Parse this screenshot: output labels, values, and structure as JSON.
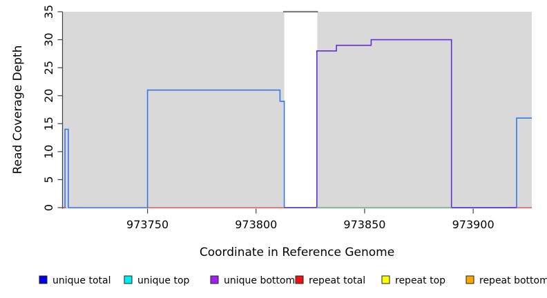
{
  "chart_data": {
    "type": "line",
    "subtype": "step-coverage",
    "title": "",
    "xlabel": "Coordinate in Reference Genome",
    "ylabel": "Read Coverage Depth",
    "xlim": [
      973711,
      973927
    ],
    "ylim": [
      0,
      35
    ],
    "x_ticks": [
      973750,
      973800,
      973850,
      973900
    ],
    "y_ticks": [
      0,
      5,
      10,
      15,
      20,
      25,
      30,
      35
    ],
    "grid": false,
    "background": {
      "plot_fill": "#d9d9d9",
      "page_fill": "#ffffff",
      "white_band_x": [
        973813,
        973828.2
      ]
    },
    "clipped_region_line": {
      "x": [
        973812.5,
        973828.5
      ],
      "y": 35,
      "color": "#7d7d7d",
      "note": "coverage clipped at top of white band"
    },
    "series": [
      {
        "name": "unique total",
        "color": "#3578e8",
        "width": 1.6,
        "points": [
          [
            973711,
            0
          ],
          [
            973712,
            0
          ],
          [
            973712,
            14
          ],
          [
            973713.5,
            14
          ],
          [
            973713.5,
            0
          ],
          [
            973750,
            0
          ],
          [
            973750,
            21
          ],
          [
            973811,
            21
          ],
          [
            973811,
            19
          ],
          [
            973813,
            19
          ],
          [
            973813,
            0
          ],
          [
            973920,
            0
          ],
          [
            973920,
            16
          ],
          [
            973927,
            16
          ]
        ]
      },
      {
        "name": "unique bottom",
        "color": "#5c2fd8",
        "width": 1.6,
        "points": [
          [
            973813,
            0
          ],
          [
            973828,
            0
          ],
          [
            973828,
            28
          ],
          [
            973837,
            28
          ],
          [
            973837,
            29
          ],
          [
            973853,
            29
          ],
          [
            973853,
            30
          ],
          [
            973890,
            30
          ],
          [
            973890,
            0
          ],
          [
            973920,
            0
          ]
        ]
      },
      {
        "name": "zero line green",
        "color": "#85c285",
        "width": 1.4,
        "points": [
          [
            973828,
            0
          ],
          [
            973890,
            0
          ]
        ]
      },
      {
        "name": "repeat total left corner",
        "color": "#e8484d",
        "width": 1.3,
        "points": [
          [
            973711,
            0
          ],
          [
            973712.5,
            0
          ]
        ]
      },
      {
        "name": "repeat total mid",
        "color": "#e8484d",
        "width": 1.3,
        "points": [
          [
            973750,
            0
          ],
          [
            973813,
            0
          ]
        ]
      },
      {
        "name": "repeat total right",
        "color": "#e8484d",
        "width": 1.3,
        "points": [
          [
            973920,
            0
          ],
          [
            973927,
            0
          ]
        ]
      }
    ],
    "legend": {
      "position": "bottom",
      "items": [
        {
          "label": "unique total",
          "color": "#0000e6"
        },
        {
          "label": "unique top",
          "color": "#00eeee"
        },
        {
          "label": "unique bottom",
          "color": "#a020f0"
        },
        {
          "label": "repeat total",
          "color": "#ee1111"
        },
        {
          "label": "repeat top",
          "color": "#ffff00"
        },
        {
          "label": "repeat bottom",
          "color": "#ffa500"
        }
      ]
    }
  }
}
